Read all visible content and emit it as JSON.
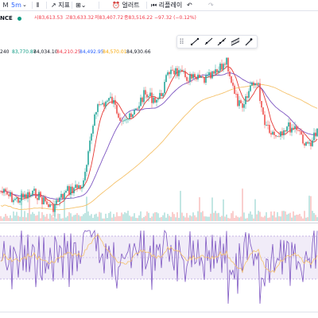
{
  "toolbar": {
    "menu_icon": "menu-icon",
    "interval": "5m",
    "indicators_label": "지표",
    "alert_label": "얼러트",
    "replay_label": "리플레이"
  },
  "symbol": {
    "name_fragment": "NCE",
    "open": "시83,613.53",
    "high": "고83,633.32",
    "low": "저83,407.72",
    "close": "종83,516.22",
    "change": "−97.32 (−0.12%)"
  },
  "moving_averages": [
    {
      "value": "240",
      "color": "#131722"
    },
    {
      "value": "83,770.87",
      "color": "#089981"
    },
    {
      "value": "84,034.10",
      "color": "#131722"
    },
    {
      "value": "84,210.25",
      "color": "#f23645"
    },
    {
      "value": "84,492.95",
      "color": "#2962ff"
    },
    {
      "value": "84,570.01",
      "color": "#f7a600"
    },
    {
      "value": "84,930.66",
      "color": "#131722"
    }
  ],
  "colors": {
    "up": "#26a69a",
    "down": "#ef5350",
    "ma_red": "#e53935",
    "ma_purple": "#7e57c2",
    "ma_yellow": "#f5c26b",
    "rsi": "#7e57c2",
    "rsi_band": "#ede7f6"
  }
}
